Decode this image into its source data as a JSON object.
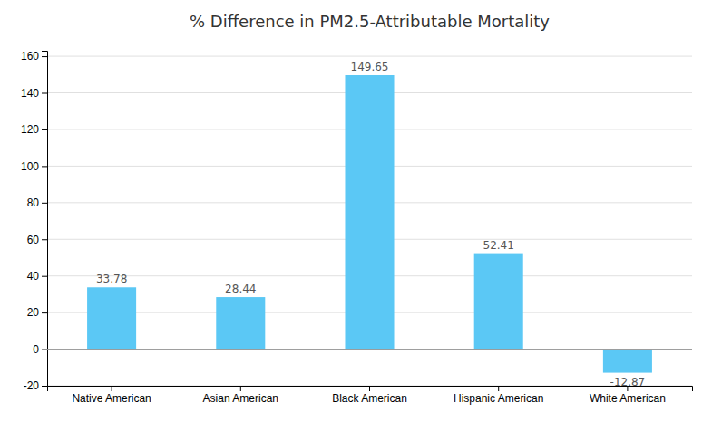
{
  "chart_data": {
    "type": "bar",
    "title": "% Difference in PM2.5-Attributable Mortality",
    "categories": [
      "Native American",
      "Asian American",
      "Black American",
      "Hispanic American",
      "White American"
    ],
    "values": [
      33.78,
      28.44,
      149.65,
      52.41,
      -12.87
    ],
    "color": "#5BC8F5",
    "ylim": [
      -20,
      163
    ],
    "yticks": [
      -20,
      0,
      20,
      40,
      60,
      80,
      100,
      120,
      140,
      160
    ],
    "grid": true,
    "data_labels": true
  }
}
